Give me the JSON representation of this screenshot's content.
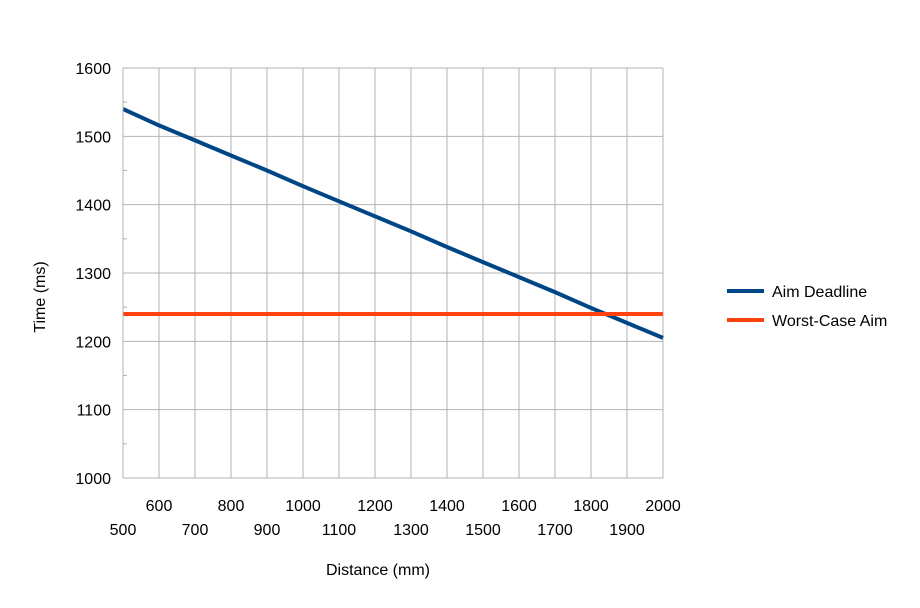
{
  "chart_data": {
    "type": "line",
    "title": "",
    "xlabel": "Distance (mm)",
    "ylabel": "Time (ms)",
    "xlim": [
      500,
      2000
    ],
    "ylim": [
      1000,
      1600
    ],
    "x_ticks": [
      500,
      600,
      700,
      800,
      900,
      1000,
      1100,
      1200,
      1300,
      1400,
      1500,
      1600,
      1700,
      1800,
      1900,
      2000
    ],
    "y_ticks": [
      1000,
      1100,
      1200,
      1300,
      1400,
      1500,
      1600
    ],
    "grid": true,
    "legend_position": "right",
    "series": [
      {
        "name": "Aim Deadline",
        "color": "#004586",
        "x": [
          500,
          600,
          700,
          800,
          900,
          1000,
          1100,
          1200,
          1300,
          1400,
          1500,
          1600,
          1700,
          1800,
          1900,
          2000
        ],
        "values": [
          1540,
          1516,
          1494,
          1472,
          1450,
          1427,
          1405,
          1383,
          1361,
          1338,
          1316,
          1294,
          1272,
          1249,
          1227,
          1205
        ]
      },
      {
        "name": "Worst-Case Aim",
        "color": "#ff420e",
        "x": [
          500,
          2000
        ],
        "values": [
          1240,
          1240
        ]
      }
    ]
  }
}
